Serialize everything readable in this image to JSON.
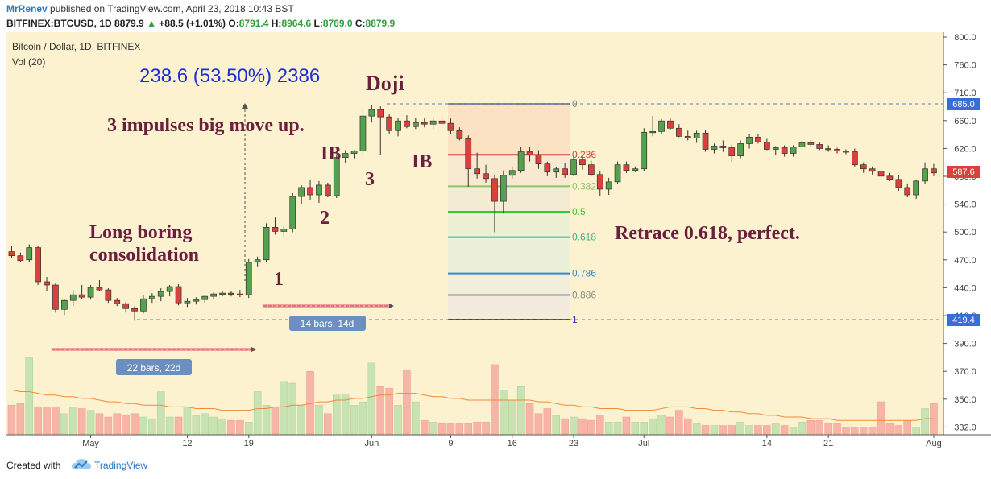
{
  "header": {
    "author": "MrRenev",
    "published": "published on TradingView.com, April 23, 2018 10:43 BST",
    "symbol": "BITFINEX:BTCUSD, 1D",
    "last": "8879.9",
    "change": "+88.5 (+1.01%)",
    "open_label": "O:",
    "open": "8791.4",
    "high_label": "H:",
    "high": "8964.6",
    "low_label": "L:",
    "low": "8769.0",
    "close_label": "C:",
    "close": "8879.9"
  },
  "footer": {
    "created_label": "Created with",
    "brand": "TradingView"
  },
  "colors": {
    "background": "#fdf2cf",
    "up": "#54a14e",
    "down": "#d9423c",
    "annotation": "#6b1f3e",
    "measure_text": "#1f2fd6",
    "badge": "#6c8fc1"
  },
  "chart_data": {
    "type": "candlestick",
    "title": "Bitcoin / Dollar, 1D, BITFINEX",
    "indicator": "Vol (20)",
    "y_ticks": [
      "800.0",
      "760.0",
      "710.0",
      "660.0",
      "620.0",
      "580.0",
      "540.0",
      "500.0",
      "470.0",
      "440.0",
      "410.0",
      "390.0",
      "370.0",
      "350.0",
      "332.0"
    ],
    "x_ticks": [
      "May",
      "12",
      "19",
      "Jun",
      "9",
      "16",
      "23",
      "Jul",
      "14",
      "21",
      "Aug"
    ],
    "price_tags": {
      "upper": "685.0",
      "current": "587.6",
      "lower": "419.4"
    },
    "fib_levels": [
      {
        "label": "0",
        "color": "#8c8c8c"
      },
      {
        "label": "0.236",
        "color": "#d9423c"
      },
      {
        "label": "0.382",
        "color": "#8cc46e"
      },
      {
        "label": "0.5",
        "color": "#32c832"
      },
      {
        "label": "0.618",
        "color": "#37b48a"
      },
      {
        "label": "0.786",
        "color": "#3a87c8"
      },
      {
        "label": "0.886",
        "color": "#8c8c8c"
      },
      {
        "label": "1",
        "color": "#2a3cc8"
      }
    ],
    "candles": [
      {
        "o": 503,
        "h": 510,
        "l": 495,
        "c": 498
      },
      {
        "o": 498,
        "h": 502,
        "l": 490,
        "c": 492
      },
      {
        "o": 493,
        "h": 512,
        "l": 490,
        "c": 508
      },
      {
        "o": 508,
        "h": 510,
        "l": 462,
        "c": 466
      },
      {
        "o": 466,
        "h": 472,
        "l": 455,
        "c": 462
      },
      {
        "o": 462,
        "h": 465,
        "l": 428,
        "c": 432
      },
      {
        "o": 432,
        "h": 445,
        "l": 425,
        "c": 443
      },
      {
        "o": 443,
        "h": 456,
        "l": 436,
        "c": 450
      },
      {
        "o": 450,
        "h": 462,
        "l": 445,
        "c": 447
      },
      {
        "o": 447,
        "h": 462,
        "l": 444,
        "c": 459
      },
      {
        "o": 459,
        "h": 468,
        "l": 455,
        "c": 456
      },
      {
        "o": 456,
        "h": 458,
        "l": 440,
        "c": 443
      },
      {
        "o": 443,
        "h": 446,
        "l": 436,
        "c": 439
      },
      {
        "o": 439,
        "h": 441,
        "l": 428,
        "c": 433
      },
      {
        "o": 433,
        "h": 436,
        "l": 418,
        "c": 430
      },
      {
        "o": 430,
        "h": 449,
        "l": 427,
        "c": 445
      },
      {
        "o": 445,
        "h": 452,
        "l": 440,
        "c": 448
      },
      {
        "o": 448,
        "h": 458,
        "l": 442,
        "c": 454
      },
      {
        "o": 454,
        "h": 462,
        "l": 448,
        "c": 460
      },
      {
        "o": 460,
        "h": 463,
        "l": 437,
        "c": 440
      },
      {
        "o": 440,
        "h": 446,
        "l": 435,
        "c": 442
      },
      {
        "o": 442,
        "h": 447,
        "l": 438,
        "c": 444
      },
      {
        "o": 444,
        "h": 450,
        "l": 440,
        "c": 448
      },
      {
        "o": 448,
        "h": 453,
        "l": 444,
        "c": 451
      },
      {
        "o": 451,
        "h": 454,
        "l": 448,
        "c": 452
      },
      {
        "o": 452,
        "h": 455,
        "l": 448,
        "c": 451
      },
      {
        "o": 451,
        "h": 456,
        "l": 447,
        "c": 450
      },
      {
        "o": 450,
        "h": 494,
        "l": 446,
        "c": 490
      },
      {
        "o": 490,
        "h": 497,
        "l": 484,
        "c": 493
      },
      {
        "o": 493,
        "h": 538,
        "l": 490,
        "c": 533
      },
      {
        "o": 533,
        "h": 545,
        "l": 524,
        "c": 528
      },
      {
        "o": 528,
        "h": 536,
        "l": 520,
        "c": 531
      },
      {
        "o": 531,
        "h": 575,
        "l": 527,
        "c": 571
      },
      {
        "o": 571,
        "h": 585,
        "l": 562,
        "c": 582
      },
      {
        "o": 582,
        "h": 592,
        "l": 566,
        "c": 573
      },
      {
        "o": 573,
        "h": 590,
        "l": 563,
        "c": 585
      },
      {
        "o": 585,
        "h": 588,
        "l": 570,
        "c": 572
      },
      {
        "o": 572,
        "h": 623,
        "l": 569,
        "c": 619
      },
      {
        "o": 619,
        "h": 628,
        "l": 612,
        "c": 624
      },
      {
        "o": 624,
        "h": 628,
        "l": 618,
        "c": 627
      },
      {
        "o": 627,
        "h": 678,
        "l": 623,
        "c": 670
      },
      {
        "o": 670,
        "h": 684,
        "l": 662,
        "c": 678
      },
      {
        "o": 678,
        "h": 682,
        "l": 622,
        "c": 669
      },
      {
        "o": 669,
        "h": 672,
        "l": 648,
        "c": 652
      },
      {
        "o": 652,
        "h": 668,
        "l": 645,
        "c": 664
      },
      {
        "o": 664,
        "h": 671,
        "l": 655,
        "c": 657
      },
      {
        "o": 657,
        "h": 668,
        "l": 654,
        "c": 662
      },
      {
        "o": 662,
        "h": 667,
        "l": 656,
        "c": 660
      },
      {
        "o": 660,
        "h": 668,
        "l": 654,
        "c": 664
      },
      {
        "o": 664,
        "h": 672,
        "l": 658,
        "c": 661
      },
      {
        "o": 661,
        "h": 667,
        "l": 648,
        "c": 652
      },
      {
        "o": 652,
        "h": 656,
        "l": 640,
        "c": 642
      },
      {
        "o": 642,
        "h": 646,
        "l": 583,
        "c": 605
      },
      {
        "o": 605,
        "h": 625,
        "l": 593,
        "c": 599
      },
      {
        "o": 599,
        "h": 610,
        "l": 588,
        "c": 593
      },
      {
        "o": 593,
        "h": 598,
        "l": 527,
        "c": 565
      },
      {
        "o": 565,
        "h": 603,
        "l": 550,
        "c": 597
      },
      {
        "o": 597,
        "h": 608,
        "l": 593,
        "c": 603
      },
      {
        "o": 603,
        "h": 632,
        "l": 600,
        "c": 626
      },
      {
        "o": 626,
        "h": 632,
        "l": 614,
        "c": 622
      },
      {
        "o": 622,
        "h": 628,
        "l": 605,
        "c": 611
      },
      {
        "o": 611,
        "h": 614,
        "l": 596,
        "c": 601
      },
      {
        "o": 601,
        "h": 607,
        "l": 594,
        "c": 605
      },
      {
        "o": 605,
        "h": 612,
        "l": 594,
        "c": 598
      },
      {
        "o": 598,
        "h": 620,
        "l": 596,
        "c": 616
      },
      {
        "o": 616,
        "h": 620,
        "l": 604,
        "c": 610
      },
      {
        "o": 610,
        "h": 615,
        "l": 596,
        "c": 598
      },
      {
        "o": 598,
        "h": 602,
        "l": 572,
        "c": 580
      },
      {
        "o": 580,
        "h": 594,
        "l": 573,
        "c": 589
      },
      {
        "o": 589,
        "h": 614,
        "l": 586,
        "c": 610
      },
      {
        "o": 610,
        "h": 614,
        "l": 600,
        "c": 603
      },
      {
        "o": 603,
        "h": 608,
        "l": 601,
        "c": 605
      },
      {
        "o": 605,
        "h": 655,
        "l": 602,
        "c": 650
      },
      {
        "o": 650,
        "h": 670,
        "l": 645,
        "c": 651
      },
      {
        "o": 651,
        "h": 666,
        "l": 648,
        "c": 664
      },
      {
        "o": 664,
        "h": 667,
        "l": 653,
        "c": 655
      },
      {
        "o": 655,
        "h": 660,
        "l": 644,
        "c": 645
      },
      {
        "o": 645,
        "h": 652,
        "l": 640,
        "c": 643
      },
      {
        "o": 643,
        "h": 652,
        "l": 637,
        "c": 649
      },
      {
        "o": 649,
        "h": 653,
        "l": 626,
        "c": 629
      },
      {
        "o": 629,
        "h": 636,
        "l": 624,
        "c": 633
      },
      {
        "o": 633,
        "h": 640,
        "l": 626,
        "c": 631
      },
      {
        "o": 631,
        "h": 635,
        "l": 614,
        "c": 621
      },
      {
        "o": 621,
        "h": 640,
        "l": 618,
        "c": 636
      },
      {
        "o": 636,
        "h": 648,
        "l": 630,
        "c": 644
      },
      {
        "o": 644,
        "h": 648,
        "l": 636,
        "c": 638
      },
      {
        "o": 638,
        "h": 642,
        "l": 628,
        "c": 629
      },
      {
        "o": 629,
        "h": 633,
        "l": 622,
        "c": 631
      },
      {
        "o": 631,
        "h": 634,
        "l": 620,
        "c": 624
      },
      {
        "o": 624,
        "h": 634,
        "l": 620,
        "c": 632
      },
      {
        "o": 632,
        "h": 640,
        "l": 626,
        "c": 637
      },
      {
        "o": 637,
        "h": 641,
        "l": 632,
        "c": 635
      },
      {
        "o": 635,
        "h": 638,
        "l": 628,
        "c": 630
      },
      {
        "o": 630,
        "h": 634,
        "l": 626,
        "c": 629
      },
      {
        "o": 629,
        "h": 631,
        "l": 624,
        "c": 627
      },
      {
        "o": 627,
        "h": 629,
        "l": 623,
        "c": 626
      },
      {
        "o": 626,
        "h": 630,
        "l": 607,
        "c": 610
      },
      {
        "o": 610,
        "h": 613,
        "l": 600,
        "c": 605
      },
      {
        "o": 605,
        "h": 608,
        "l": 598,
        "c": 602
      },
      {
        "o": 602,
        "h": 606,
        "l": 592,
        "c": 596
      },
      {
        "o": 596,
        "h": 600,
        "l": 590,
        "c": 592
      },
      {
        "o": 592,
        "h": 597,
        "l": 578,
        "c": 582
      },
      {
        "o": 582,
        "h": 587,
        "l": 570,
        "c": 573
      },
      {
        "o": 573,
        "h": 592,
        "l": 568,
        "c": 590
      },
      {
        "o": 590,
        "h": 613,
        "l": 586,
        "c": 605
      },
      {
        "o": 605,
        "h": 611,
        "l": 596,
        "c": 600
      }
    ],
    "volume": [
      17,
      18,
      45,
      16,
      16,
      16,
      12,
      16,
      15,
      14,
      12,
      10,
      12,
      11,
      12,
      10,
      9,
      25,
      10,
      10,
      16,
      11,
      12,
      10,
      9,
      8,
      8,
      7,
      25,
      17,
      16,
      31,
      30,
      17,
      37,
      17,
      12,
      23,
      23,
      17,
      19,
      42,
      28,
      27,
      17,
      38,
      19,
      8,
      7,
      6,
      6,
      6,
      6,
      7,
      7,
      41,
      26,
      20,
      28,
      18,
      12,
      15,
      11,
      9,
      10,
      9,
      8,
      11,
      7,
      7,
      10,
      7,
      7,
      9,
      11,
      10,
      14,
      9,
      6,
      5,
      5,
      5,
      5,
      7,
      5,
      5,
      5,
      6,
      5,
      4,
      7,
      8,
      8,
      6,
      6,
      4,
      4,
      4,
      4,
      19,
      6,
      5,
      8,
      4,
      15,
      18
    ],
    "vol_ma": [
      26,
      25,
      25,
      24,
      23,
      23,
      22,
      22,
      21,
      21,
      20,
      19,
      19,
      18,
      18,
      17,
      17,
      17,
      16,
      16,
      16,
      15,
      15,
      15,
      14,
      14,
      14,
      14,
      15,
      15,
      16,
      16,
      17,
      17,
      18,
      19,
      19,
      20,
      20,
      21,
      21,
      22,
      23,
      23,
      24,
      24,
      24,
      23,
      22,
      22,
      21,
      21,
      20,
      20,
      20,
      20,
      20,
      20,
      20,
      20,
      19,
      19,
      18,
      17,
      17,
      16,
      16,
      15,
      15,
      15,
      14,
      14,
      14,
      14,
      15,
      16,
      16,
      16,
      15,
      15,
      14,
      14,
      13,
      13,
      12,
      12,
      11,
      11,
      10,
      10,
      10,
      9,
      9,
      9,
      8,
      8,
      8,
      8,
      8,
      8,
      8,
      8,
      8,
      8,
      9,
      9
    ]
  },
  "annotations": {
    "measure": "238.6 (53.50%) 2386",
    "doji": "Doji",
    "impulses": "3 impulses big move up.",
    "ib1": "IB",
    "ib2": "IB",
    "n1": "1",
    "n2": "2",
    "n3": "3",
    "consolidation1": "Long boring",
    "consolidation2": "consolidation",
    "retrace": "Retrace 0.618, perfect.",
    "badge_14": "14 bars, 14d",
    "badge_22": "22 bars, 22d"
  }
}
